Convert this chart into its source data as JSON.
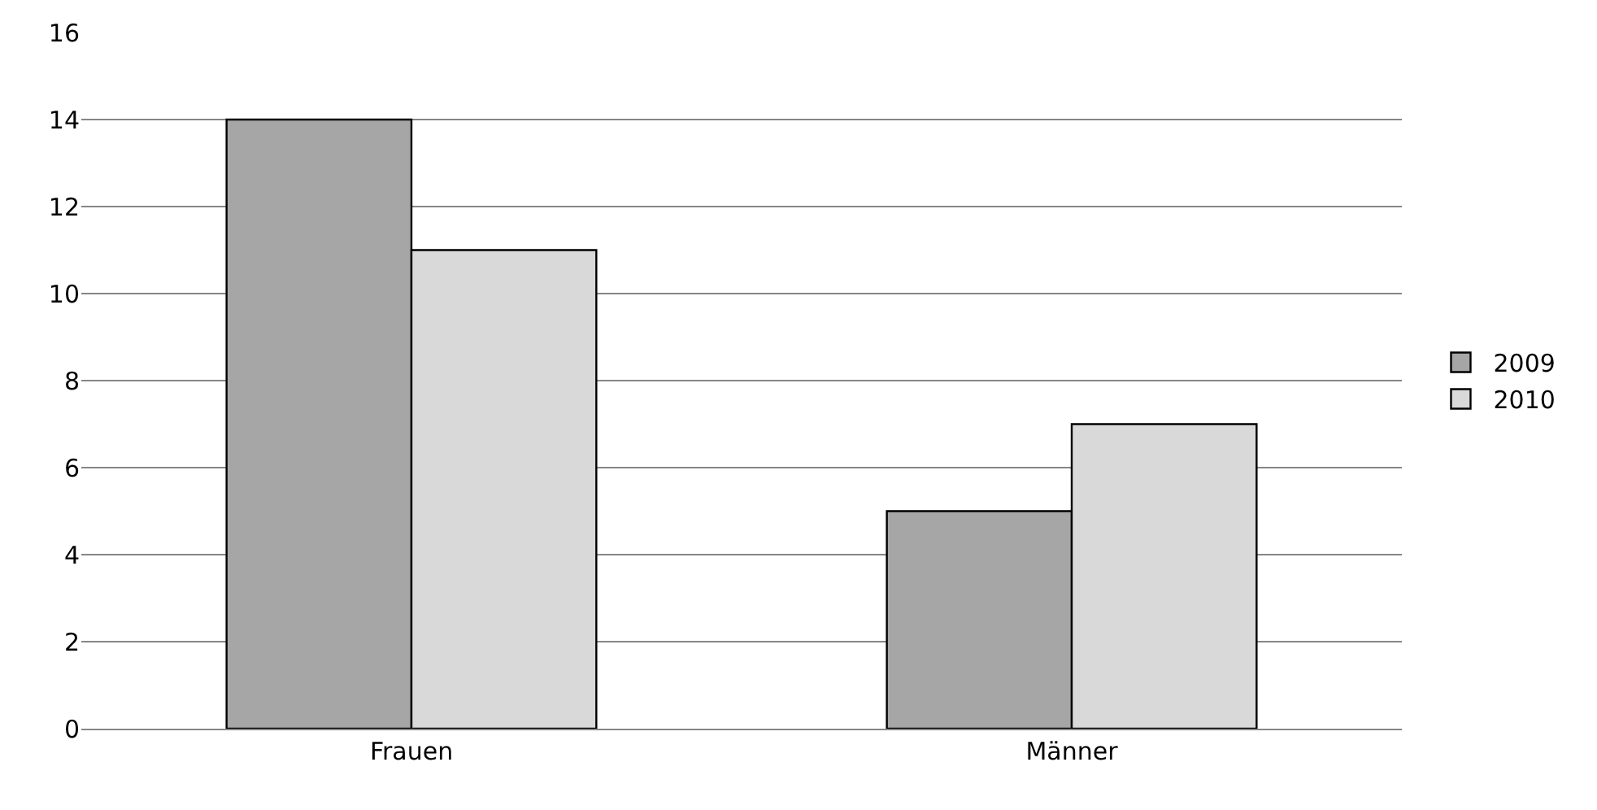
{
  "chart_data": {
    "type": "bar",
    "categories": [
      "Frauen",
      "Männer"
    ],
    "series": [
      {
        "name": "2009",
        "color": "#a6a6a6",
        "values": [
          14,
          5
        ]
      },
      {
        "name": "2010",
        "color": "#d9d9d9",
        "values": [
          11,
          7
        ]
      }
    ],
    "ylim": [
      0,
      16
    ],
    "yticks": [
      0,
      2,
      4,
      6,
      8,
      10,
      12,
      14,
      16
    ],
    "grid": "y",
    "legend": "right"
  }
}
